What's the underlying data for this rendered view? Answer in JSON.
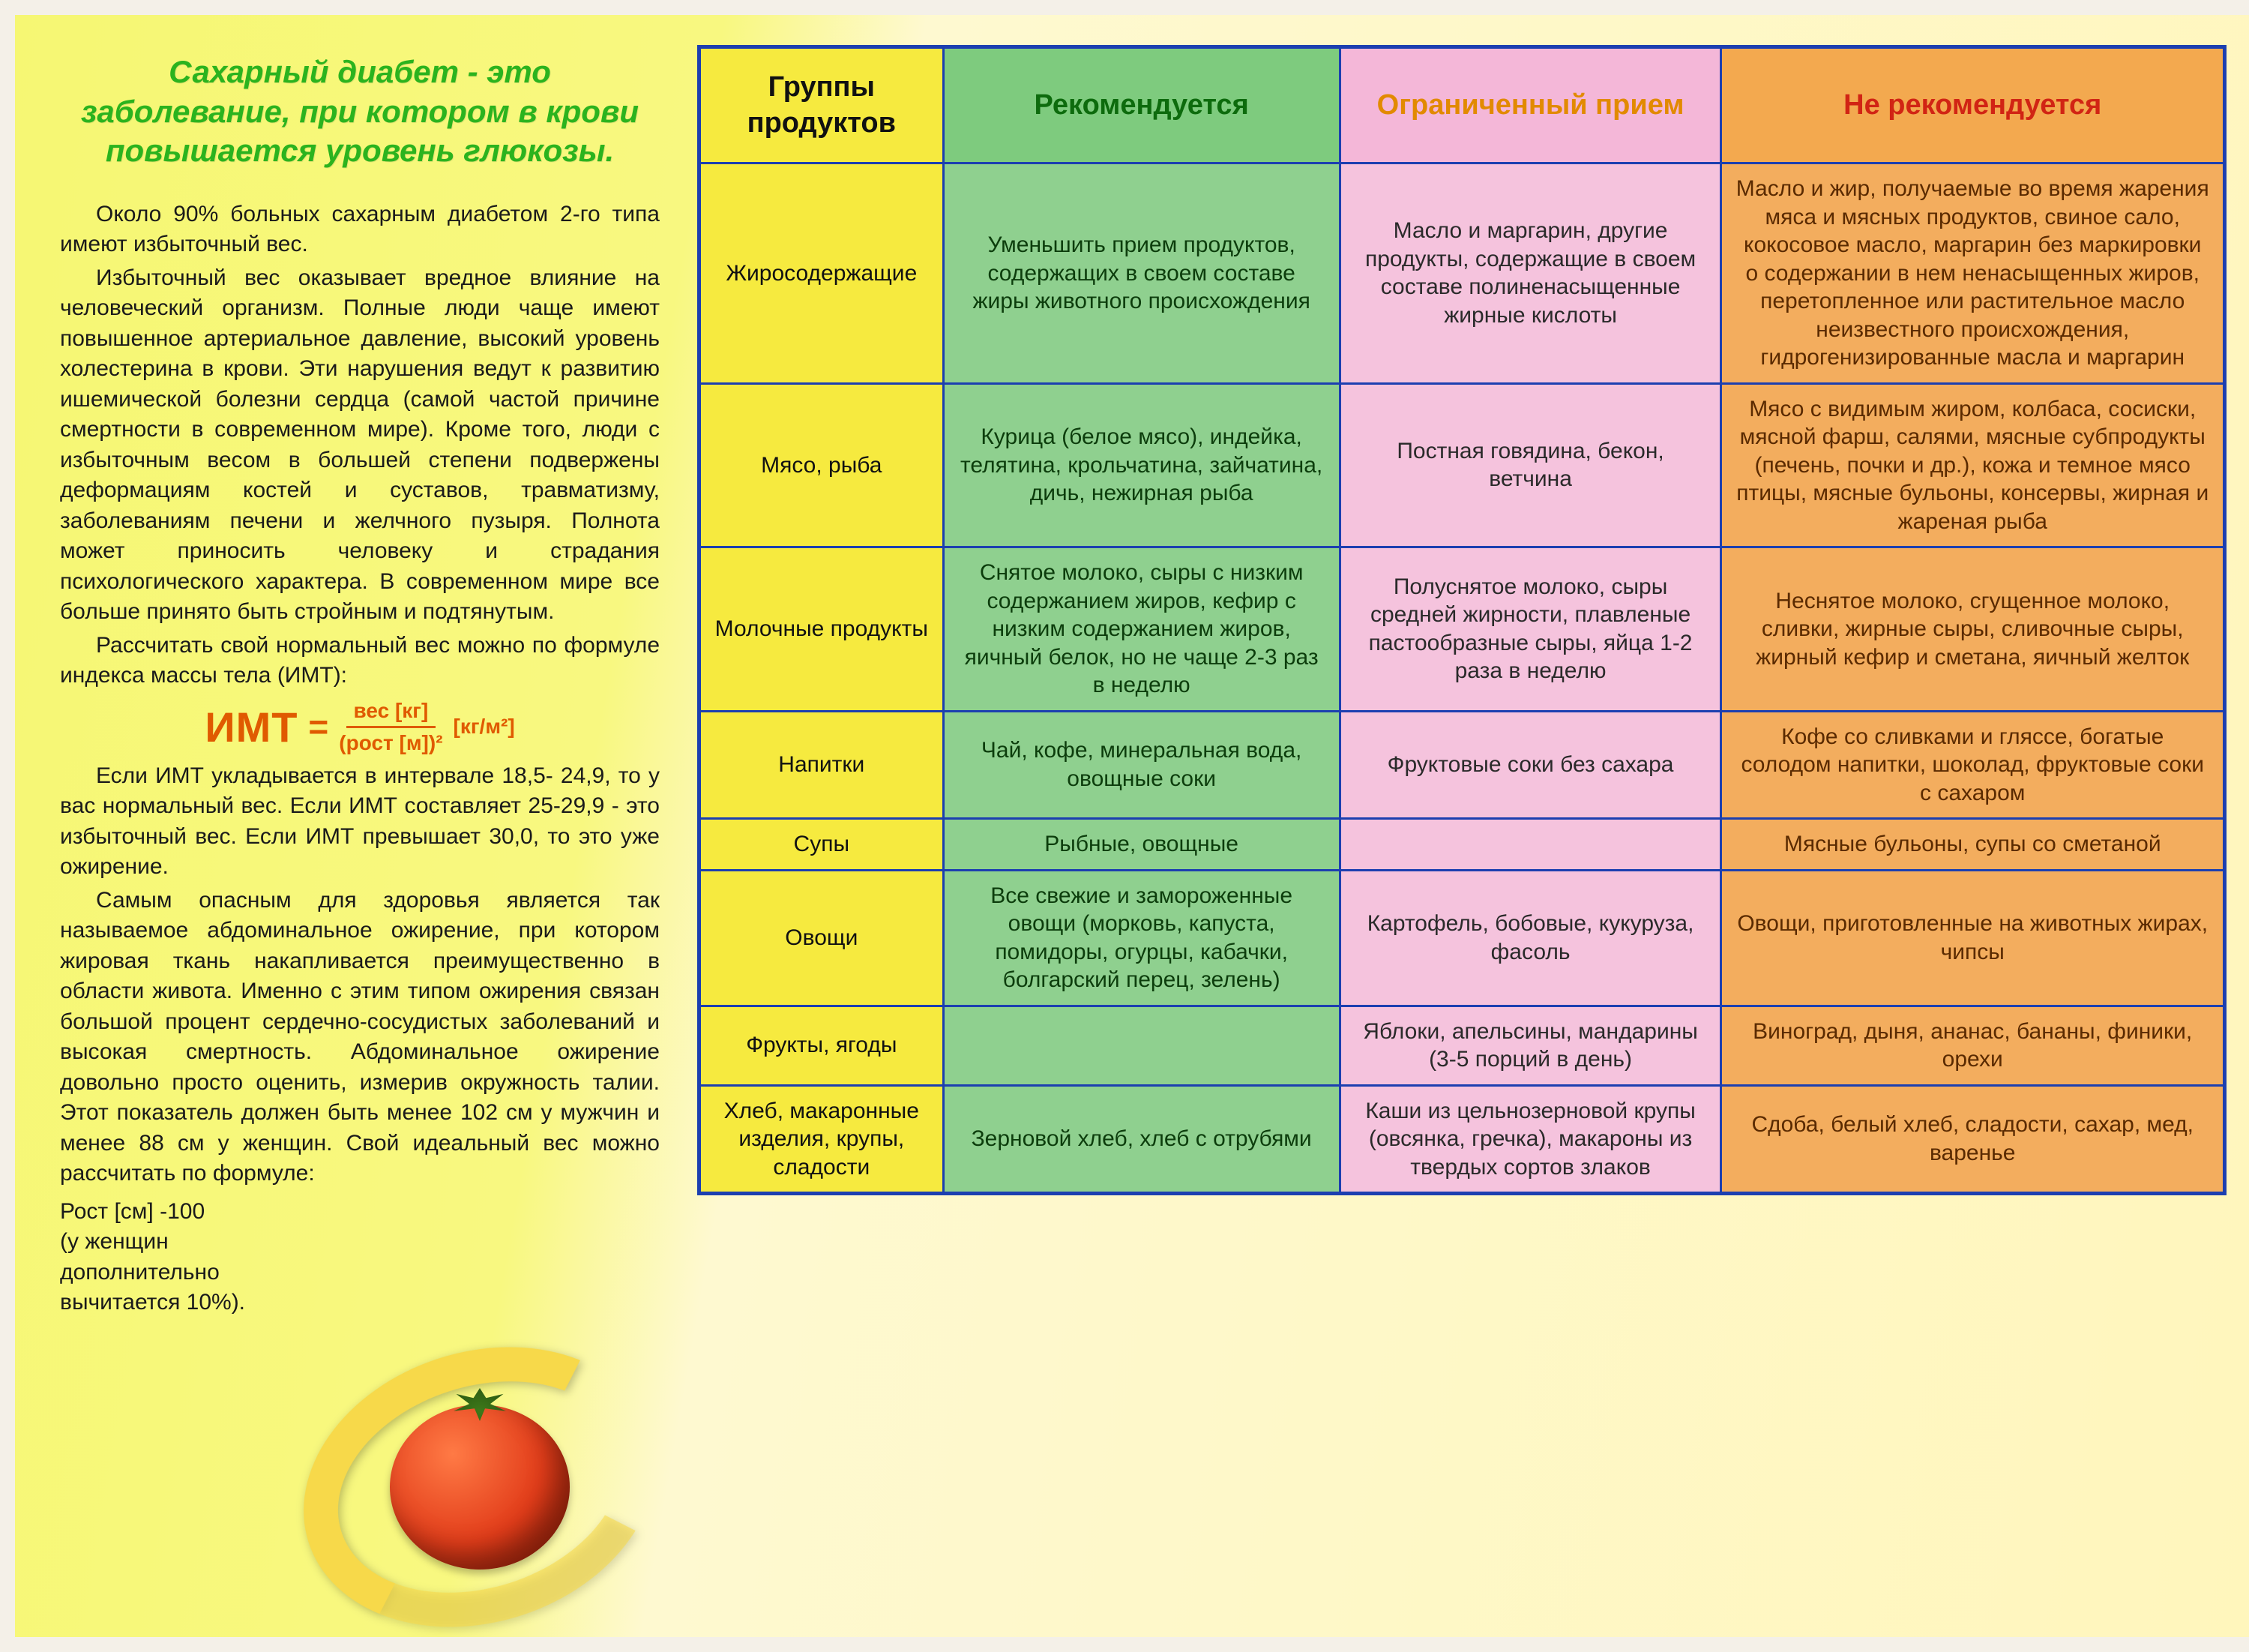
{
  "colors": {
    "border": "#1c3fb0",
    "title": "#2bb31e",
    "formula": "#e05a00",
    "col1_bg": "#f6ea3f",
    "col2_bg": "#8fd08f",
    "col3_bg": "#f5c3dd",
    "col4_bg": "#f3ad5e",
    "col2_header_text": "#0d6b0d",
    "col3_header_text": "#e28a00",
    "col4_header_text": "#d12414"
  },
  "left": {
    "title": "Сахарный диабет - это заболевание, при котором в крови повышается уровень глюкозы.",
    "p1": "Около 90% больных сахарным диабетом 2-го типа имеют избыточный вес.",
    "p2": "Избыточный вес оказывает вредное влияние на человеческий организм. Полные люди чаще имеют повышенное артериальное давление, высокий уровень холестерина в крови. Эти нарушения ведут к развитию ишемической болезни сердца (самой частой причине смертности в современном мире). Кроме того, люди с избыточным весом в большей степени подвержены деформациям костей и суставов, травматизму, заболеваниям печени и желчного пузыря. Полнота может приносить человеку и страдания психологического характера. В современном мире все больше принято быть стройным и подтянутым.",
    "p3": "Рассчитать свой нормальный вес можно по формуле индекса массы тела (ИМТ):",
    "formula": {
      "label": "ИМТ",
      "num": "вес [кг]",
      "den": "(рост [м])²",
      "unit": "[кг/м²]"
    },
    "p4": "Если ИМТ укладывается в интервале 18,5- 24,9, то у вас нормальный вес. Если ИМТ составляет 25-29,9 - это избыточный вес. Если ИМТ превышает 30,0, то это уже ожирение.",
    "p5": "Самым опасным для здоровья является так называемое абдоминальное ожирение, при котором жировая ткань накапливается преимущественно в области живота. Именно с этим типом ожирения связан большой процент сердечно-сосудистых заболеваний и высокая смертность. Абдоминальное ожирение довольно просто оценить, измерив окружность талии. Этот показатель должен быть менее 102 см у мужчин и менее 88 см у женщин. Свой идеальный вес можно рассчитать по формуле:",
    "footnote": "Рост [см] -100\n(у женщин\nдополнительно\nвычитается 10%)."
  },
  "table": {
    "headers": [
      "Группы продуктов",
      "Рекомендуется",
      "Ограниченный прием",
      "Не рекомендуется"
    ],
    "rows": [
      {
        "group": "Жиросодержащие",
        "rec": "Уменьшить прием продуктов, содержащих в своем составе жиры животного происхождения",
        "lim": "Масло и маргарин, другие продукты, содержащие в своем составе полиненасыщенные жирные кислоты",
        "not": "Масло и жир, получаемые во время жарения мяса и мясных продуктов, свиное сало, кокосовое масло, маргарин без маркировки о содержании в нем ненасыщенных жиров, перетопленное или растительное масло неизвестного происхождения, гидрогенизированные масла и маргарин"
      },
      {
        "group": "Мясо, рыба",
        "rec": "Курица (белое мясо), индейка, телятина, крольчатина, зайчатина, дичь, нежирная рыба",
        "lim": "Постная говядина, бекон, ветчина",
        "not": "Мясо с видимым жиром, колбаса, сосиски, мясной фарш, салями, мясные субпродукты (печень, почки и др.), кожа и темное мясо птицы, мясные бульоны, консервы, жирная и жареная рыба"
      },
      {
        "group": "Молочные продукты",
        "rec": "Снятое молоко, сыры с низким содержанием жиров, кефир с низким содержанием жиров, яичный белок, но не чаще 2-3 раз в неделю",
        "lim": "Полуснятое молоко, сыры средней жирности, плавленые пастообразные сыры, яйца 1-2 раза в неделю",
        "not": "Неснятое молоко, сгущенное молоко, сливки, жирные сыры, сливочные сыры, жирный кефир и сметана, яичный желток"
      },
      {
        "group": "Напитки",
        "rec": "Чай, кофе, минеральная вода, овощные соки",
        "lim": "Фруктовые соки без сахара",
        "not": "Кофе со сливками и гляссе, богатые солодом напитки, шоколад, фруктовые соки с сахаром"
      },
      {
        "group": "Супы",
        "rec": "Рыбные, овощные",
        "lim": "",
        "not": "Мясные бульоны, супы со сметаной"
      },
      {
        "group": "Овощи",
        "rec": "Все свежие и замороженные овощи (морковь, капуста, помидоры, огурцы, кабачки, болгарский перец, зелень)",
        "lim": "Картофель, бобовые, кукуруза, фасоль",
        "not": "Овощи, приготовленные на животных жирах, чипсы"
      },
      {
        "group": "Фрукты, ягоды",
        "rec": "",
        "lim": "Яблоки, апельсины, мандарины (3-5 порций в день)",
        "not": "Виноград, дыня, ананас, бананы, финики, орехи"
      },
      {
        "group": "Хлеб, макаронные изделия, крупы, сладости",
        "rec": "Зерновой хлеб, хлеб с отрубями",
        "lim": "Каши из цельнозерновой крупы (овсянка, гречка), макароны из твердых сортов злаков",
        "not": "Сдоба, белый хлеб, сладости, сахар, мед, варенье"
      }
    ]
  }
}
